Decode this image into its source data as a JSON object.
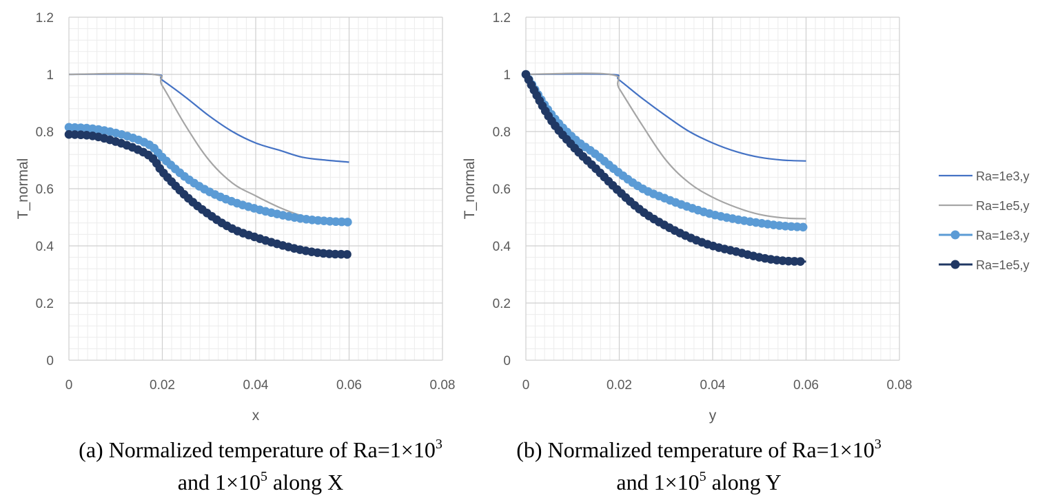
{
  "chart_data": [
    {
      "type": "line",
      "panel": "a",
      "xlabel": "x",
      "ylabel": "T_normal",
      "xlim": [
        0,
        0.08
      ],
      "ylim": [
        0,
        1.2
      ],
      "xticks": [
        "0",
        "0.02",
        "0.04",
        "0.06",
        "0.08"
      ],
      "yticks": [
        "0",
        "0.2",
        "0.4",
        "0.6",
        "0.8",
        "1",
        "1.2"
      ],
      "grid": true,
      "series": [
        {
          "name": "Ra=1e3,y",
          "style": "line",
          "color": "#4472c4",
          "x": [
            0,
            0.018,
            0.02,
            0.025,
            0.03,
            0.035,
            0.04,
            0.045,
            0.05,
            0.055,
            0.06
          ],
          "y": [
            1.0,
            1.0,
            0.98,
            0.92,
            0.855,
            0.8,
            0.76,
            0.735,
            0.71,
            0.7,
            0.693
          ]
        },
        {
          "name": "Ra=1e5,y",
          "style": "line",
          "color": "#a5a5a5",
          "x": [
            0,
            0.018,
            0.02,
            0.025,
            0.03,
            0.035,
            0.04,
            0.045,
            0.05,
            0.055,
            0.06
          ],
          "y": [
            1.0,
            1.0,
            0.96,
            0.82,
            0.7,
            0.62,
            0.575,
            0.535,
            0.505,
            0.49,
            0.485
          ]
        },
        {
          "name": "Ra=1e3,y",
          "style": "marker",
          "color": "#5b9bd5",
          "x": [
            0,
            0.005,
            0.01,
            0.015,
            0.018,
            0.02,
            0.025,
            0.03,
            0.035,
            0.04,
            0.045,
            0.05,
            0.055,
            0.06
          ],
          "y": [
            0.815,
            0.81,
            0.795,
            0.77,
            0.745,
            0.71,
            0.64,
            0.59,
            0.555,
            0.53,
            0.51,
            0.495,
            0.487,
            0.483
          ]
        },
        {
          "name": "Ra=1e5,y",
          "style": "marker",
          "color": "#203864",
          "x": [
            0,
            0.005,
            0.01,
            0.015,
            0.018,
            0.02,
            0.025,
            0.03,
            0.035,
            0.04,
            0.045,
            0.05,
            0.055,
            0.06
          ],
          "y": [
            0.79,
            0.785,
            0.765,
            0.735,
            0.705,
            0.66,
            0.575,
            0.51,
            0.46,
            0.43,
            0.405,
            0.385,
            0.373,
            0.37
          ]
        }
      ]
    },
    {
      "type": "line",
      "panel": "b",
      "xlabel": "y",
      "ylabel": "T_normal",
      "xlim": [
        0,
        0.08
      ],
      "ylim": [
        0,
        1.2
      ],
      "xticks": [
        "0",
        "0.02",
        "0.04",
        "0.06",
        "0.08"
      ],
      "yticks": [
        "0",
        "0.2",
        "0.4",
        "0.6",
        "0.8",
        "1",
        "1.2"
      ],
      "grid": true,
      "legend_position": "right",
      "series": [
        {
          "name": "Ra=1e3,y",
          "style": "line",
          "color": "#4472c4",
          "x": [
            0,
            0.018,
            0.02,
            0.025,
            0.03,
            0.035,
            0.04,
            0.045,
            0.05,
            0.055,
            0.06
          ],
          "y": [
            1.0,
            1.0,
            0.98,
            0.915,
            0.855,
            0.8,
            0.76,
            0.73,
            0.71,
            0.7,
            0.697
          ]
        },
        {
          "name": "Ra=1e5,y",
          "style": "line",
          "color": "#a5a5a5",
          "x": [
            0,
            0.018,
            0.02,
            0.025,
            0.03,
            0.035,
            0.04,
            0.045,
            0.05,
            0.055,
            0.06
          ],
          "y": [
            1.0,
            1.0,
            0.95,
            0.82,
            0.7,
            0.62,
            0.57,
            0.535,
            0.51,
            0.498,
            0.495
          ]
        },
        {
          "name": "Ra=1e3,y",
          "style": "marker",
          "color": "#5b9bd5",
          "x": [
            0,
            0.005,
            0.01,
            0.015,
            0.02,
            0.025,
            0.03,
            0.035,
            0.04,
            0.045,
            0.05,
            0.055,
            0.06
          ],
          "y": [
            1.0,
            0.87,
            0.78,
            0.72,
            0.655,
            0.6,
            0.565,
            0.535,
            0.51,
            0.493,
            0.48,
            0.47,
            0.465
          ]
        },
        {
          "name": "Ra=1e5,y",
          "style": "marker",
          "color": "#203864",
          "x": [
            0,
            0.005,
            0.01,
            0.015,
            0.02,
            0.025,
            0.03,
            0.035,
            0.04,
            0.045,
            0.05,
            0.055,
            0.06
          ],
          "y": [
            1.0,
            0.85,
            0.75,
            0.67,
            0.59,
            0.52,
            0.47,
            0.43,
            0.4,
            0.38,
            0.36,
            0.348,
            0.345
          ]
        }
      ]
    }
  ],
  "captions": {
    "a": {
      "prefix": "(a) Normalized temperature of Ra=1×10",
      "exp1": "3",
      "line2_prefix": "and 1×10",
      "exp2": "5",
      "line2_suffix": " along X"
    },
    "b": {
      "prefix": "(b) Normalized temperature of Ra=1×10",
      "exp1": "3",
      "line2_prefix": "and 1×10",
      "exp2": "5",
      "line2_suffix": " along Y"
    }
  }
}
